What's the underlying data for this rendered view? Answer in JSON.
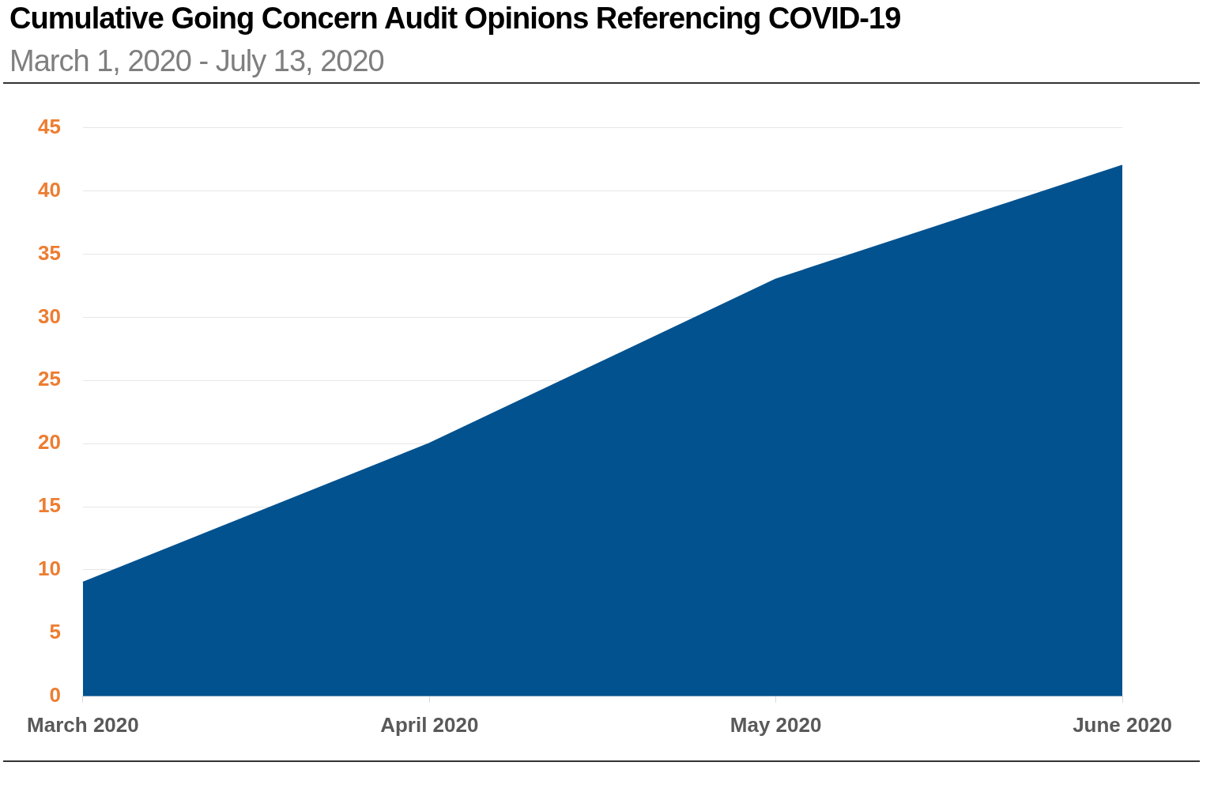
{
  "chart_data": {
    "type": "area",
    "title": "Cumulative Going Concern Audit Opinions Referencing COVID-19",
    "subtitle": "March 1, 2020 - July 13, 2020",
    "categories": [
      "March 2020",
      "April 2020",
      "May 2020",
      "June 2020"
    ],
    "values": [
      9,
      20,
      33,
      42
    ],
    "color": "#02528f",
    "ylim": [
      0,
      45
    ],
    "yticks": [
      0,
      5,
      10,
      15,
      20,
      25,
      30,
      35,
      40,
      45
    ],
    "grid": "y",
    "legend": false
  }
}
